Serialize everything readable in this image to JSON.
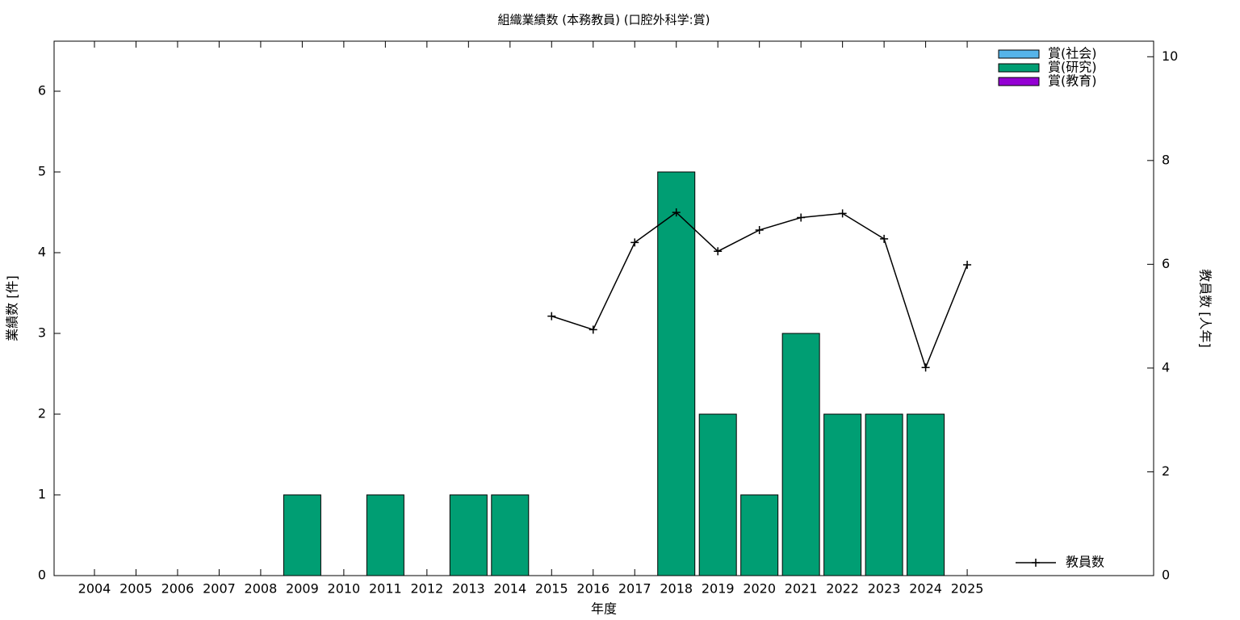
{
  "chart_data": {
    "type": "bar",
    "title": "組織業績数 (本務教員) (口腔外科学:賞)",
    "xlabel": "年度",
    "ylabel": "業績数 [件]",
    "y2label": "教員数 [人年]",
    "categories": [
      "2004",
      "2005",
      "2006",
      "2007",
      "2008",
      "2009",
      "2010",
      "2011",
      "2012",
      "2013",
      "2014",
      "2015",
      "2016",
      "2017",
      "2018",
      "2019",
      "2020",
      "2021",
      "2022",
      "2023",
      "2024",
      "2025"
    ],
    "series": [
      {
        "name": "賞(社会)",
        "color": "#56b4e9",
        "values": [
          0,
          0,
          0,
          0,
          0,
          0,
          0,
          0,
          0,
          0,
          0,
          0,
          0,
          0,
          0,
          0,
          0,
          0,
          0,
          0,
          0,
          0
        ]
      },
      {
        "name": "賞(研究)",
        "color": "#009e73",
        "values": [
          0,
          0,
          0,
          0,
          0,
          1,
          0,
          1,
          0,
          1,
          1,
          0,
          0,
          0,
          5,
          2,
          1,
          3,
          2,
          2,
          2,
          0
        ]
      },
      {
        "name": "賞(教育)",
        "color": "#9400d3",
        "values": [
          0,
          0,
          0,
          0,
          0,
          0,
          0,
          0,
          0,
          0,
          0,
          0,
          0,
          0,
          0,
          0,
          0,
          0,
          0,
          0,
          0,
          0
        ]
      },
      {
        "name": "教員数",
        "color": "#000000",
        "axis": "y2",
        "values": [
          null,
          null,
          null,
          null,
          null,
          null,
          null,
          null,
          null,
          null,
          null,
          5.0,
          4.74,
          6.42,
          7.0,
          6.25,
          6.66,
          6.9,
          6.98,
          6.49,
          4.01,
          5.99
        ]
      }
    ],
    "ylim": [
      0,
      6.62
    ],
    "yticks": [
      0,
      1,
      2,
      3,
      4,
      5,
      6
    ],
    "y2lim": [
      0,
      10.3
    ],
    "y2ticks": [
      0,
      2,
      4,
      6,
      8,
      10
    ]
  }
}
